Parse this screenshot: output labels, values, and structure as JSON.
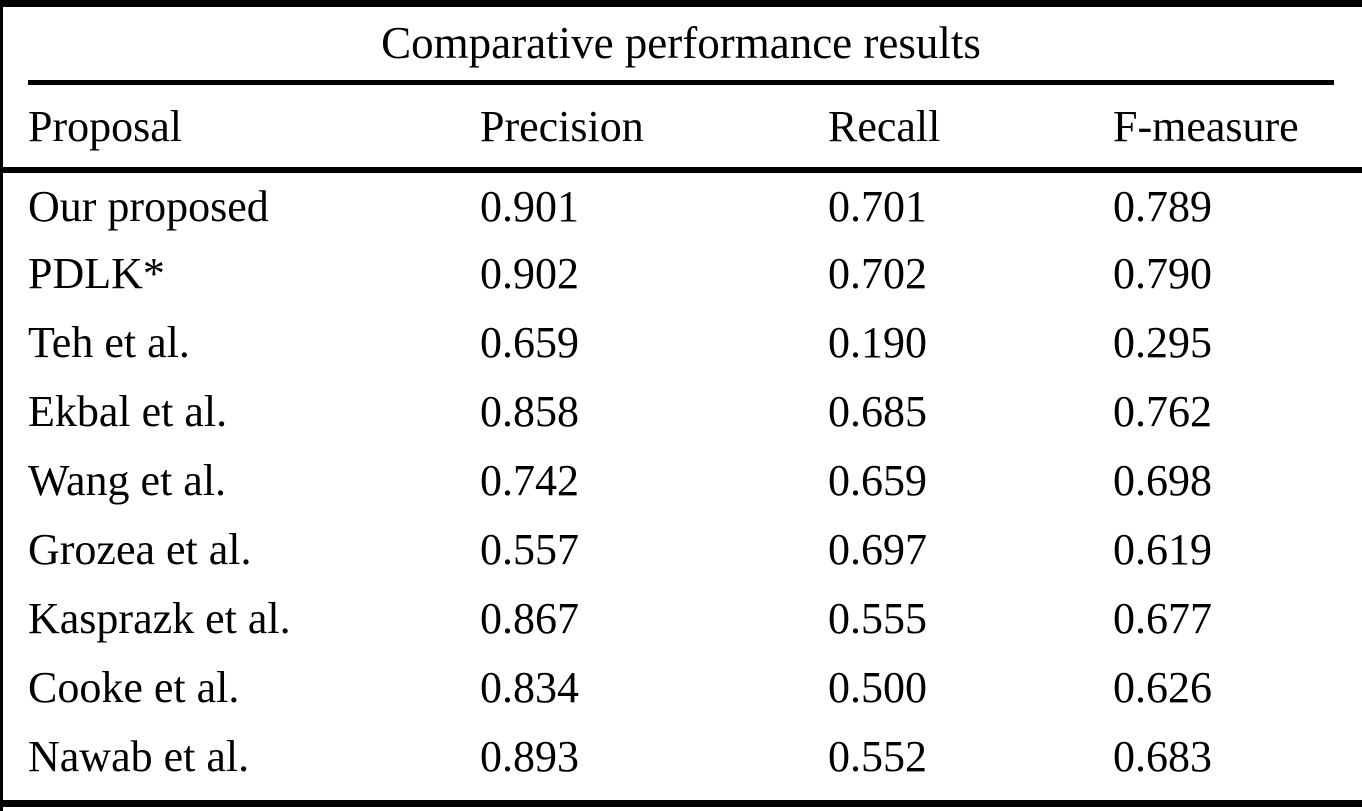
{
  "table": {
    "title": "Comparative performance results",
    "columns": [
      "Proposal",
      "Precision",
      "Recall",
      "F-measure"
    ],
    "rows": [
      {
        "proposal": "Our proposed",
        "precision": "0.901",
        "recall": "0.701",
        "f_measure": "0.789"
      },
      {
        "proposal": "PDLK*",
        "precision": "0.902",
        "recall": "0.702",
        "f_measure": "0.790"
      },
      {
        "proposal": "Teh et al.",
        "precision": "0.659",
        "recall": "0.190",
        "f_measure": "0.295"
      },
      {
        "proposal": "Ekbal et al.",
        "precision": "0.858",
        "recall": "0.685",
        "f_measure": "0.762"
      },
      {
        "proposal": "Wang et al.",
        "precision": "0.742",
        "recall": "0.659",
        "f_measure": "0.698"
      },
      {
        "proposal": "Grozea et al.",
        "precision": "0.557",
        "recall": "0.697",
        "f_measure": "0.619"
      },
      {
        "proposal": "Kasprazk et al.",
        "precision": "0.867",
        "recall": "0.555",
        "f_measure": "0.677"
      },
      {
        "proposal": "Cooke et al.",
        "precision": "0.834",
        "recall": "0.500",
        "f_measure": "0.626"
      },
      {
        "proposal": "Nawab et al.",
        "precision": "0.893",
        "recall": "0.552",
        "f_measure": "0.683"
      }
    ]
  },
  "colors": {
    "text": "#000000",
    "background": "#ffffff",
    "rule": "#000000"
  }
}
